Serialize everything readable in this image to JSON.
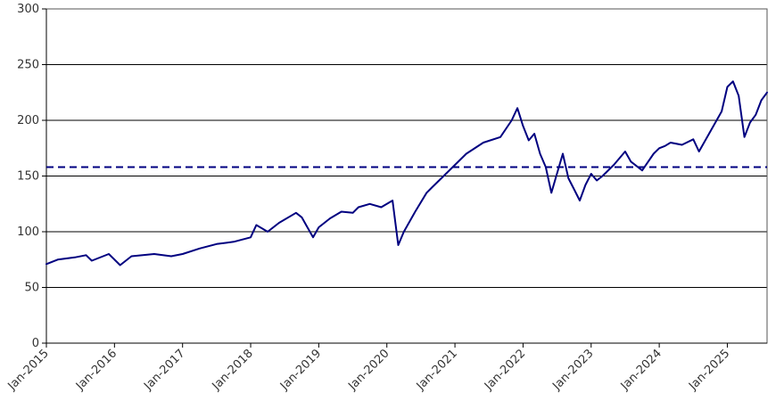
{
  "chart_data": {
    "type": "line",
    "title": "",
    "xlabel": "",
    "ylabel": "",
    "x_range": [
      "2015-01",
      "2025-08"
    ],
    "ylim": [
      0,
      300
    ],
    "y_ticks": [
      0,
      50,
      100,
      150,
      200,
      250,
      300
    ],
    "y_tick_labels": [
      "0",
      "50",
      "100",
      "150",
      "200",
      "250",
      "300"
    ],
    "x_ticks": [
      "2015-01",
      "2016-01",
      "2017-01",
      "2018-01",
      "2019-01",
      "2020-01",
      "2021-01",
      "2022-01",
      "2023-01",
      "2024-01",
      "2025-01"
    ],
    "x_tick_labels": [
      "Jan-2015",
      "Jan-2016",
      "Jan-2017",
      "Jan-2018",
      "Jan-2019",
      "Jan-2020",
      "Jan-2021",
      "Jan-2022",
      "Jan-2023",
      "Jan-2024",
      "Jan-2025"
    ],
    "grid": "horizontal",
    "series": [
      {
        "color": "#000080",
        "x": [
          "2015-01",
          "2015-03",
          "2015-06",
          "2015-08",
          "2015-09",
          "2015-12",
          "2016-02",
          "2016-04",
          "2016-06",
          "2016-08",
          "2016-11",
          "2017-01",
          "2017-04",
          "2017-07",
          "2017-10",
          "2018-01",
          "2018-02",
          "2018-04",
          "2018-06",
          "2018-09",
          "2018-10",
          "2018-12",
          "2019-01",
          "2019-03",
          "2019-05",
          "2019-07",
          "2019-08",
          "2019-10",
          "2019-12",
          "2020-02",
          "2020-03",
          "2020-04",
          "2020-06",
          "2020-08",
          "2020-09",
          "2020-11",
          "2021-01",
          "2021-03",
          "2021-06",
          "2021-09",
          "2021-11",
          "2021-12",
          "2022-01",
          "2022-02",
          "2022-03",
          "2022-04",
          "2022-05",
          "2022-06",
          "2022-08",
          "2022-09",
          "2022-10",
          "2022-11",
          "2022-12",
          "2023-01",
          "2023-02",
          "2023-03",
          "2023-05",
          "2023-07",
          "2023-08",
          "2023-10",
          "2023-12",
          "2024-01",
          "2024-02",
          "2024-03",
          "2024-05",
          "2024-07",
          "2024-08",
          "2024-10",
          "2024-12",
          "2025-01",
          "2025-02",
          "2025-03",
          "2025-04",
          "2025-05",
          "2025-06",
          "2025-07",
          "2025-08"
        ],
        "y": [
          71,
          75,
          77,
          79,
          74,
          80,
          70,
          78,
          79,
          80,
          78,
          80,
          85,
          89,
          91,
          95,
          106,
          100,
          108,
          117,
          113,
          95,
          104,
          112,
          118,
          117,
          122,
          125,
          122,
          128,
          88,
          100,
          118,
          135,
          140,
          150,
          160,
          170,
          180,
          185,
          200,
          211,
          195,
          182,
          188,
          170,
          158,
          135,
          170,
          148,
          138,
          128,
          142,
          152,
          146,
          150,
          160,
          172,
          163,
          155,
          170,
          175,
          177,
          180,
          178,
          183,
          172,
          190,
          208,
          230,
          235,
          222,
          185,
          198,
          205,
          218,
          225
        ]
      }
    ],
    "reference_lines": [
      {
        "orientation": "horizontal",
        "y": 158,
        "style": "dashed",
        "color": "#000080"
      }
    ]
  }
}
